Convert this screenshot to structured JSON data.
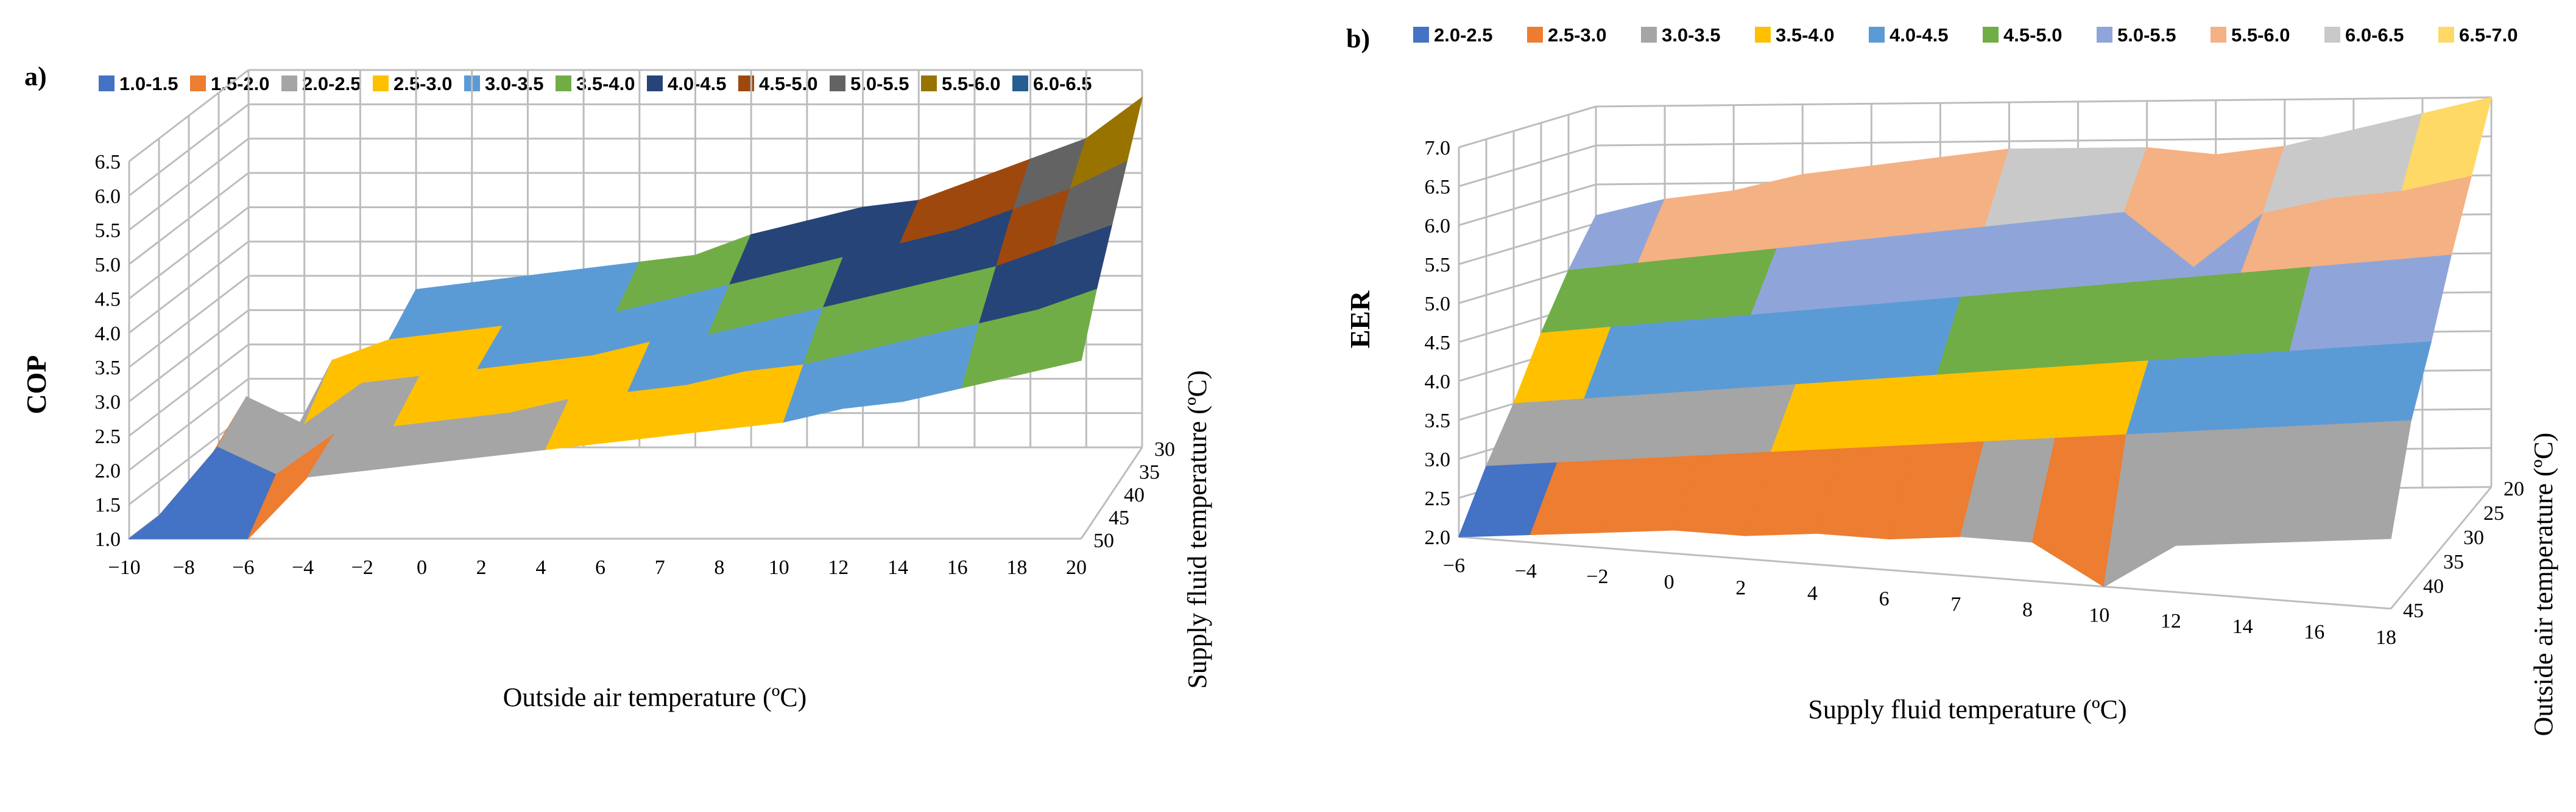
{
  "colors": [
    "#4472c4",
    "#ed7d31",
    "#a5a5a5",
    "#ffc000",
    "#5b9bd5",
    "#70ad47",
    "#264478",
    "#9e480e",
    "#636363",
    "#997300",
    "#255e91"
  ],
  "colors_b": [
    "#4472c4",
    "#ed7d31",
    "#a5a5a5",
    "#ffc000",
    "#5b9bd5",
    "#70ad47",
    "#8fa5d9",
    "#f4b183",
    "#c9c9c9",
    "#ffd966"
  ],
  "chart_data": [
    {
      "type": "surface",
      "panel_label": "a)",
      "xlabel": "Outside air temperature (ºC)",
      "ylabel": "COP",
      "zlabel": "Supply fluid temperature (ºC)",
      "x_ticks": [
        "−10",
        "−8",
        "−6",
        "−4",
        "−2",
        "0",
        "2",
        "4",
        "6",
        "7",
        "8",
        "10",
        "12",
        "14",
        "16",
        "18",
        "20"
      ],
      "y_ticks": [
        "1.0",
        "1.5",
        "2.0",
        "2.5",
        "3.0",
        "3.5",
        "4.0",
        "4.5",
        "5.0",
        "5.5",
        "6.0",
        "6.5"
      ],
      "depth_ticks": [
        "30",
        "35",
        "40",
        "45",
        "50"
      ],
      "legend": [
        "1.0-1.5",
        "1.5-2.0",
        "2.0-2.5",
        "2.5-3.0",
        "3.0-3.5",
        "3.5-4.0",
        "4.0-4.5",
        "4.5-5.0",
        "5.0-5.5",
        "5.5-6.0",
        "6.0-6.5"
      ],
      "ylim": [
        1.0,
        6.5
      ],
      "values_by_supply_temp": {
        "30": [
          1.0,
          1.0,
          1.0,
          3.3,
          3.4,
          3.5,
          3.6,
          3.7,
          3.8,
          4.1,
          4.3,
          4.5,
          4.6,
          4.9,
          5.2,
          5.5,
          6.1
        ],
        "35": [
          1.0,
          1.0,
          2.6,
          2.9,
          3.0,
          3.1,
          3.2,
          3.3,
          3.5,
          3.7,
          3.9,
          4.1,
          4.3,
          4.5,
          4.8,
          5.1,
          5.5
        ],
        "40": [
          1.0,
          2.4,
          2.0,
          2.6,
          2.7,
          2.8,
          2.9,
          3.0,
          3.2,
          3.3,
          3.5,
          3.7,
          3.9,
          4.1,
          4.3,
          4.6,
          4.9
        ],
        "45": [
          1.0,
          2.0,
          1.6,
          2.2,
          2.3,
          2.4,
          2.5,
          2.7,
          2.8,
          2.9,
          3.1,
          3.2,
          3.4,
          3.6,
          3.8,
          4.0,
          4.3
        ],
        "50": [
          1.0,
          1.0,
          1.0,
          1.9,
          2.0,
          2.1,
          2.2,
          2.3,
          2.4,
          2.5,
          2.6,
          2.7,
          2.9,
          3.0,
          3.2,
          3.4,
          3.6
        ]
      }
    },
    {
      "type": "surface",
      "panel_label": "b)",
      "xlabel": "Supply fluid temperature (ºC)",
      "ylabel": "EER",
      "zlabel": "Outside air temperature (ºC)",
      "x_ticks": [
        "−6",
        "−4",
        "−2",
        "0",
        "2",
        "4",
        "6",
        "7",
        "8",
        "10",
        "12",
        "14",
        "16",
        "18"
      ],
      "y_ticks": [
        "2.0",
        "2.5",
        "3.0",
        "3.5",
        "4.0",
        "4.5",
        "5.0",
        "5.5",
        "6.0",
        "6.5",
        "7.0"
      ],
      "depth_ticks": [
        "20",
        "25",
        "30",
        "35",
        "40",
        "45"
      ],
      "legend": [
        "2.0-2.5",
        "2.5-3.0",
        "3.0-3.5",
        "3.5-4.0",
        "4.0-4.5",
        "4.5-5.0",
        "5.0-5.5",
        "5.5-6.0",
        "6.0-6.5",
        "6.5-7.0"
      ],
      "ylim": [
        2.0,
        7.0
      ],
      "values_by_outside_temp": {
        "20": [
          5.6,
          5.8,
          5.9,
          6.1,
          6.2,
          6.3,
          6.4,
          6.4,
          6.4,
          6.3,
          6.4,
          6.6,
          6.8,
          7.0
        ],
        "25": [
          5.0,
          5.1,
          5.2,
          5.3,
          5.4,
          5.5,
          5.6,
          5.7,
          5.8,
          5.1,
          5.8,
          6.0,
          6.1,
          6.3
        ],
        "30": [
          4.3,
          4.4,
          4.5,
          4.6,
          4.7,
          4.8,
          4.9,
          5.0,
          5.1,
          5.2,
          5.3,
          5.4,
          5.5,
          5.6
        ],
        "35": [
          3.5,
          3.6,
          3.7,
          3.8,
          3.9,
          4.0,
          4.1,
          4.2,
          4.3,
          4.4,
          4.5,
          4.6,
          4.7,
          4.8
        ],
        "40": [
          2.8,
          2.9,
          3.0,
          3.1,
          3.2,
          3.3,
          3.4,
          3.5,
          3.6,
          3.7,
          3.8,
          3.9,
          4.0,
          4.1
        ],
        "45": [
          2.0,
          2.1,
          2.2,
          2.3,
          2.3,
          2.4,
          2.4,
          2.5,
          2.5,
          2.0,
          2.6,
          2.7,
          2.8,
          2.9
        ]
      }
    }
  ]
}
